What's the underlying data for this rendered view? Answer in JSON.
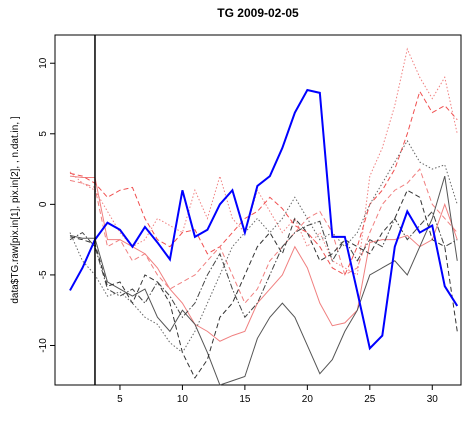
{
  "chart_data": {
    "type": "line",
    "title": "TG 2009-02-05",
    "y_label": "data$TG.raw[pix.in[1], pix.in[2], , n.dat.in, ]",
    "x": [
      1,
      2,
      3,
      4,
      5,
      6,
      7,
      8,
      9,
      10,
      11,
      12,
      13,
      14,
      15,
      16,
      17,
      18,
      19,
      20,
      21,
      22,
      23,
      24,
      25,
      26,
      27,
      28,
      29,
      30,
      31,
      32
    ],
    "xlim": [
      -0.2,
      32.3
    ],
    "xticks": [
      5,
      10,
      15,
      20,
      25,
      30
    ],
    "ylim": [
      -12.8,
      12
    ],
    "yticks": [
      -10,
      -5,
      0,
      5,
      10
    ],
    "vline": 3,
    "series": [
      {
        "color": "#f08080",
        "linestyle": "solid",
        "values": [
          2.0,
          1.9,
          1.9,
          -2.5,
          -2.5,
          -3,
          -3.5,
          -4.5,
          -6,
          -7,
          -8.5,
          -9,
          -9.7,
          -9.3,
          -9,
          -7,
          -6,
          -5,
          -3,
          -4.5,
          -7,
          -8.6,
          -8.4,
          -7.5,
          -2.7,
          -2.5,
          -2.5,
          -2.2,
          -3,
          -2.5,
          0,
          -2.5
        ]
      },
      {
        "color": "#f08080",
        "linestyle": "dotted",
        "values": [
          2.3,
          1.5,
          1.0,
          -0.5,
          -2,
          -3,
          -2.5,
          -1,
          -1.5,
          -2,
          1,
          -1,
          2,
          -1,
          -2,
          1,
          -0.5,
          -2,
          -1,
          -3,
          -2,
          -4,
          -4.5,
          -5,
          2,
          4,
          7,
          11,
          9,
          7.5,
          9,
          5
        ]
      },
      {
        "color": "#f05050",
        "linestyle": "dashed",
        "values": [
          2.2,
          2,
          1.5,
          0.5,
          1,
          1.2,
          -1,
          -2.5,
          -3,
          -2,
          -1.8,
          -3.5,
          -3,
          -2,
          -1,
          -0.5,
          0.5,
          -0.3,
          -1.5,
          -2,
          -3,
          -4.5,
          -5,
          -3,
          0,
          1,
          2.5,
          5,
          8,
          6.5,
          7,
          6
        ]
      },
      {
        "color": "#f08080",
        "linestyle": "dashed",
        "values": [
          1.7,
          1.5,
          1.2,
          -3,
          -2.5,
          -4,
          -3.5,
          -5,
          -6,
          -5.5,
          -5,
          -4,
          -3,
          -5,
          -7,
          -6,
          -4,
          -3,
          -2,
          -1,
          -0.5,
          -2,
          -5,
          -4.5,
          -2,
          0,
          1,
          1.5,
          2.5,
          0,
          -1,
          -2
        ]
      },
      {
        "color": "#555555",
        "linestyle": "solid",
        "values": [
          -2.2,
          -2.4,
          -2.4,
          -5.5,
          -6,
          -6.5,
          -6,
          -8,
          -9,
          -7.5,
          -8.5,
          -10.5,
          -12.8,
          -12.5,
          -12.2,
          -9.5,
          -8,
          -7,
          -8,
          -10,
          -12,
          -11,
          -9,
          -7.5,
          -5,
          -4.5,
          -4,
          -5,
          -3,
          -1,
          2,
          -4
        ]
      },
      {
        "color": "#333333",
        "linestyle": "dashed",
        "values": [
          -2.3,
          -2.5,
          -2.8,
          -5.8,
          -5.5,
          -7,
          -5,
          -5.5,
          -7,
          -10.5,
          -12.3,
          -11,
          -8,
          -7,
          -5,
          -3,
          -2,
          -3.5,
          -1,
          -2,
          -4,
          -3.5,
          -2.5,
          -3,
          -3.5,
          -2,
          -1,
          1,
          0.5,
          -2.5,
          -3,
          -9
        ]
      },
      {
        "color": "#666666",
        "linestyle": "dotted",
        "values": [
          -2,
          -4,
          -5,
          -6.5,
          -6.2,
          -7,
          -8,
          -8.5,
          -9.8,
          -10.5,
          -9,
          -7,
          -5,
          -3,
          -2,
          -1,
          -2,
          -1,
          0.5,
          -1,
          -2.5,
          -2,
          -3,
          -2,
          0,
          1.5,
          3,
          4.5,
          3,
          2.5,
          2.8,
          0
        ]
      },
      {
        "color": "#444444",
        "linestyle": "dashdot",
        "values": [
          -2.5,
          -2,
          -3,
          -6,
          -6.5,
          -6,
          -7,
          -5.5,
          -6.5,
          -8,
          -7,
          -5,
          -3.5,
          -6,
          -8,
          -7,
          -5,
          -3,
          -2,
          -1.5,
          -1.2,
          -4,
          -2.5,
          -4,
          -2.5,
          -3,
          -1,
          -2.5,
          -1.5,
          -0.5,
          -3,
          -2.5
        ]
      },
      {
        "color": "#0000ff",
        "linestyle": "solid",
        "width": 2,
        "values": [
          -6.1,
          -4.5,
          -2.5,
          -1.3,
          -1.8,
          -3,
          -1.6,
          -2.7,
          -3.9,
          1.0,
          -2.3,
          -1.8,
          0,
          1.0,
          -2.0,
          1.3,
          2.0,
          4.0,
          6.5,
          8.1,
          7.9,
          -2.3,
          -2.3,
          -6.2,
          -10.2,
          -9.3,
          -3.0,
          -0.5,
          -2.0,
          -1.5,
          -5.8,
          -7.2
        ]
      }
    ]
  }
}
